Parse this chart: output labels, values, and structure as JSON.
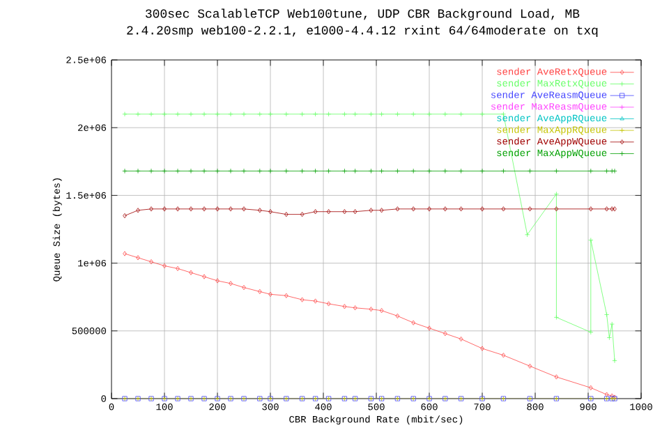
{
  "chart_data": {
    "type": "line",
    "title": "300sec ScalableTCP Web100tune, UDP CBR Background Load, MB",
    "subtitle": "2.4.20smp web100-2.2.1, e1000-4.4.12 rxint 64/64moderate on txq",
    "xlabel": "CBR Background Rate (mbit/sec)",
    "ylabel": "Queue Size (bytes)",
    "xlim": [
      0,
      1000
    ],
    "ylim": [
      0,
      2500000
    ],
    "xticks": [
      0,
      100,
      200,
      300,
      400,
      500,
      600,
      700,
      800,
      900,
      1000
    ],
    "yticks": [
      0,
      500000,
      {
        "value": 1000000,
        "label": "1e+06"
      },
      {
        "value": 1500000,
        "label": "1.5e+06"
      },
      {
        "value": 2000000,
        "label": "2e+06"
      },
      {
        "value": 2500000,
        "label": "2.5e+06"
      }
    ],
    "grid": true,
    "legend": "top right",
    "line_style": "solid",
    "x": [
      25,
      50,
      75,
      100,
      125,
      150,
      175,
      200,
      225,
      250,
      280,
      300,
      330,
      360,
      385,
      410,
      440,
      460,
      490,
      510,
      540,
      570,
      600,
      630,
      660,
      700,
      740,
      790,
      840,
      905,
      935,
      945,
      950
    ],
    "series": [
      {
        "name": "sender AveRetxQueue",
        "color": "#ff4444",
        "marker": "diamond",
        "values": [
          1070000,
          1040000,
          1010000,
          980000,
          960000,
          930000,
          900000,
          870000,
          850000,
          820000,
          790000,
          770000,
          760000,
          730000,
          720000,
          700000,
          680000,
          670000,
          660000,
          650000,
          610000,
          560000,
          520000,
          480000,
          440000,
          370000,
          320000,
          240000,
          160000,
          80000,
          30000,
          20000,
          10000
        ]
      },
      {
        "name": "sender MaxRetxQueue",
        "color": "#66ff66",
        "marker": "cross",
        "x": [
          25,
          50,
          75,
          100,
          125,
          150,
          175,
          200,
          225,
          250,
          280,
          300,
          330,
          360,
          385,
          410,
          440,
          460,
          490,
          510,
          540,
          570,
          600,
          630,
          660,
          700,
          740,
          785,
          840,
          840,
          905,
          905,
          935,
          940,
          945,
          950
        ],
        "values": [
          2100000,
          2100000,
          2100000,
          2100000,
          2100000,
          2100000,
          2100000,
          2100000,
          2100000,
          2100000,
          2100000,
          2100000,
          2100000,
          2100000,
          2100000,
          2100000,
          2100000,
          2100000,
          2100000,
          2100000,
          2100000,
          2100000,
          2100000,
          2100000,
          2100000,
          2100000,
          2100000,
          1210000,
          1510000,
          600000,
          490000,
          1170000,
          620000,
          450000,
          550000,
          280000
        ]
      },
      {
        "name": "sender AveReasmQueue",
        "color": "#4444ff",
        "marker": "square",
        "values": [
          0,
          0,
          0,
          0,
          0,
          0,
          0,
          0,
          0,
          0,
          0,
          0,
          0,
          0,
          0,
          0,
          0,
          0,
          0,
          0,
          0,
          0,
          0,
          0,
          0,
          0,
          0,
          0,
          0,
          0,
          0,
          0,
          0
        ]
      },
      {
        "name": "sender MaxReasmQueue",
        "color": "#ff44ff",
        "marker": "cross",
        "values": [
          null,
          null,
          null,
          null,
          null,
          null,
          null,
          null,
          null,
          null,
          null,
          null,
          null,
          null,
          null,
          null,
          null,
          null,
          null,
          null,
          null,
          null,
          null,
          null,
          null,
          null,
          null,
          null,
          null,
          null,
          null,
          null,
          null
        ]
      },
      {
        "name": "sender AveAppRQueue",
        "color": "#00c4c4",
        "marker": "triangle",
        "values": [
          null,
          null,
          null,
          null,
          null,
          null,
          null,
          null,
          null,
          null,
          null,
          null,
          null,
          null,
          null,
          null,
          null,
          null,
          null,
          null,
          null,
          null,
          null,
          null,
          null,
          null,
          null,
          null,
          null,
          null,
          null,
          null,
          null
        ]
      },
      {
        "name": "sender MaxAppRQueue",
        "color": "#c4c400",
        "marker": "cross",
        "values": [
          0,
          0,
          0,
          0,
          0,
          0,
          0,
          0,
          0,
          0,
          0,
          0,
          0,
          0,
          0,
          0,
          0,
          0,
          0,
          0,
          0,
          0,
          0,
          0,
          0,
          0,
          0,
          0,
          0,
          0,
          0,
          0,
          0
        ]
      },
      {
        "name": "sender AveAppWQueue",
        "color": "#a00000",
        "marker": "diamond",
        "values": [
          1350000,
          1390000,
          1400000,
          1400000,
          1400000,
          1400000,
          1400000,
          1400000,
          1400000,
          1400000,
          1390000,
          1380000,
          1360000,
          1360000,
          1380000,
          1380000,
          1380000,
          1380000,
          1390000,
          1390000,
          1400000,
          1400000,
          1400000,
          1400000,
          1400000,
          1400000,
          1400000,
          1400000,
          1400000,
          1400000,
          1400000,
          1400000,
          1400000
        ]
      },
      {
        "name": "sender MaxAppWQueue",
        "color": "#00a000",
        "marker": "cross",
        "values": [
          1680000,
          1680000,
          1680000,
          1680000,
          1680000,
          1680000,
          1680000,
          1680000,
          1680000,
          1680000,
          1680000,
          1680000,
          1680000,
          1680000,
          1680000,
          1680000,
          1680000,
          1680000,
          1680000,
          1680000,
          1680000,
          1680000,
          1680000,
          1680000,
          1680000,
          1680000,
          1680000,
          1680000,
          1680000,
          1680000,
          1680000,
          1680000,
          1680000
        ]
      }
    ]
  }
}
